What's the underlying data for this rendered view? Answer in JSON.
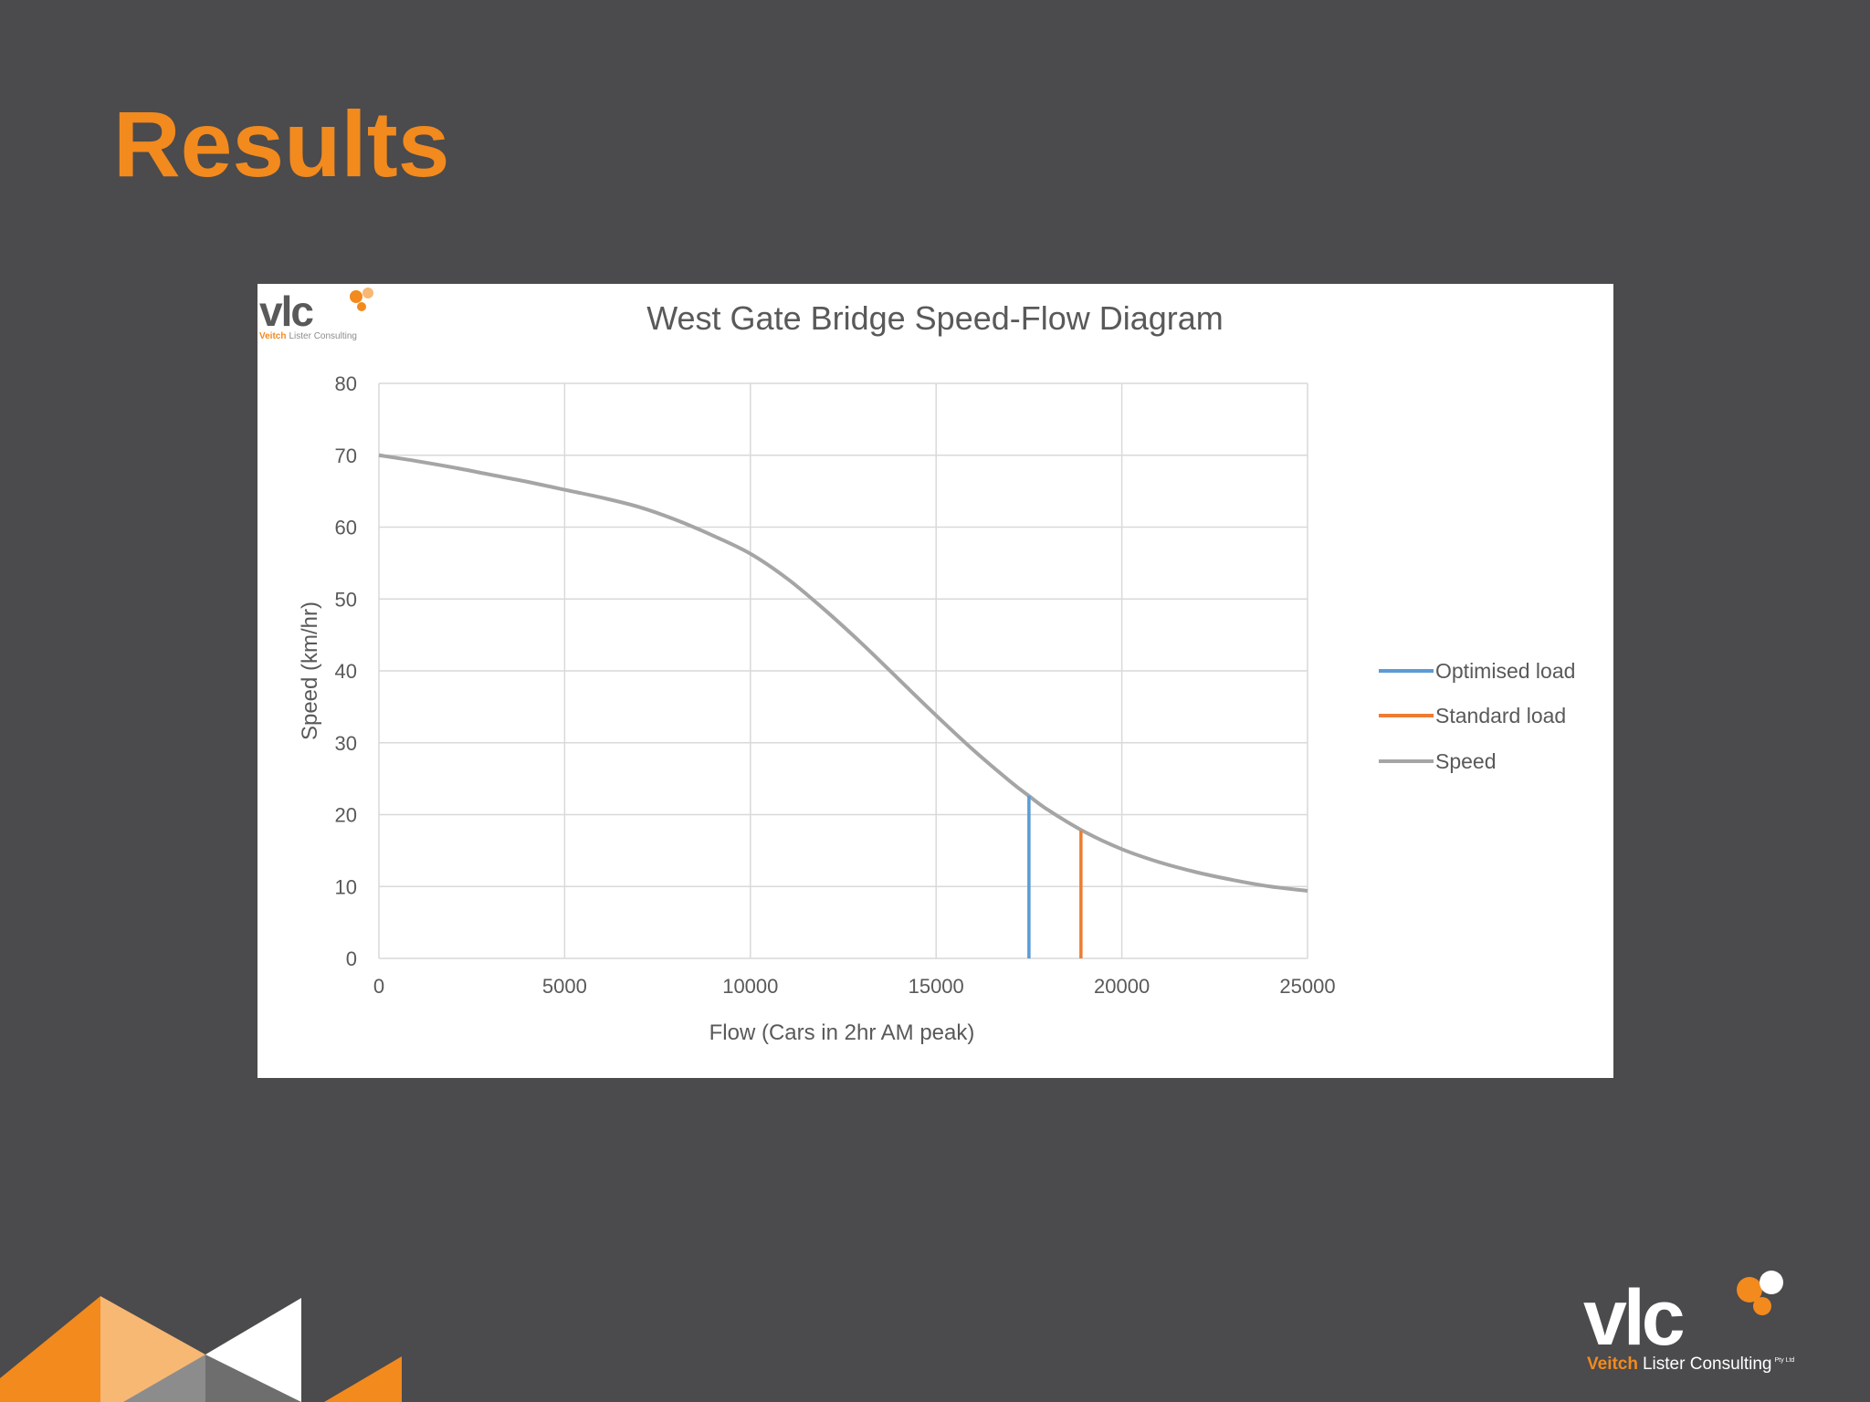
{
  "slide": {
    "title": "Results"
  },
  "chart_data": {
    "type": "line",
    "title": "West Gate Bridge Speed-Flow Diagram",
    "xlabel": "Flow (Cars in 2hr AM peak)",
    "ylabel": "Speed (km/hr)",
    "xlim": [
      0,
      25000
    ],
    "ylim": [
      0,
      80
    ],
    "x_ticks": [
      "0",
      "5000",
      "10000",
      "15000",
      "20000",
      "25000"
    ],
    "y_ticks": [
      "0",
      "10",
      "20",
      "30",
      "40",
      "50",
      "60",
      "70",
      "80"
    ],
    "grid": true,
    "legend_position": "right",
    "legend": [
      "Optimised load",
      "Standard load",
      "Speed"
    ],
    "series": [
      {
        "name": "Speed",
        "color": "#a5a5a5",
        "x": [
          0,
          1000,
          2000,
          3000,
          4000,
          5000,
          6000,
          7000,
          8000,
          9000,
          10000,
          11000,
          12000,
          13000,
          14000,
          15000,
          16000,
          17000,
          17500,
          18000,
          19000,
          20000,
          21000,
          22000,
          23000,
          24000,
          25000
        ],
        "y": [
          70,
          69.2,
          68.3,
          67.3,
          66.3,
          65.2,
          64.1,
          62.8,
          61,
          58.8,
          56.3,
          52.8,
          48.5,
          43.8,
          38.8,
          33.8,
          29,
          24.6,
          22.6,
          20.7,
          17.6,
          15.2,
          13.4,
          12.0,
          10.9,
          10.0,
          9.4
        ]
      },
      {
        "name": "Optimised load",
        "color": "#5b9bd5",
        "x": [
          17500,
          17500
        ],
        "y": [
          0,
          22.6
        ]
      },
      {
        "name": "Standard load",
        "color": "#ed7d31",
        "x": [
          18900,
          18900
        ],
        "y": [
          0,
          17.8
        ]
      }
    ]
  },
  "logos": {
    "brand_short": "vlc",
    "brand_full": "Veitch Lister Consulting",
    "brand_first": "Veitch",
    "brand_rest": "Lister Consulting",
    "suffix": "Pty Ltd",
    "accent_color": "#f28a1e"
  }
}
